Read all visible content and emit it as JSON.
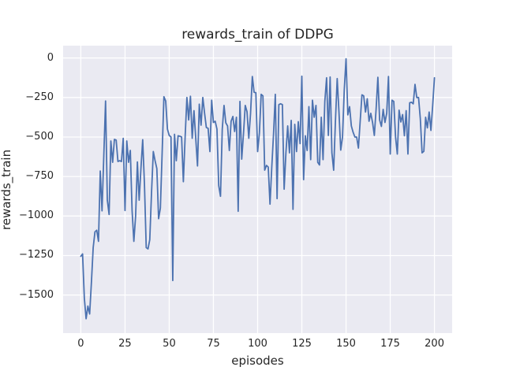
{
  "title": "rewards_train of DDPG",
  "colors": {
    "figure_background": "#ffffff",
    "axes_background": "#EAEAF2",
    "gridline": "#ffffff",
    "line": "#4C72B0",
    "text": "#262626"
  },
  "chart_data": {
    "type": "line",
    "title": "rewards_train of DDPG",
    "xlabel": "episodes",
    "ylabel": "rewards_train",
    "legend": null,
    "grid": true,
    "xlim": [
      -10,
      210
    ],
    "ylim": [
      -1741,
      78
    ],
    "xticks": [
      0,
      25,
      50,
      75,
      100,
      125,
      150,
      175,
      200
    ],
    "yticks": [
      0,
      -250,
      -500,
      -750,
      -1000,
      -1250,
      -1500
    ],
    "x_start": 0,
    "x_step": 1,
    "values": [
      -1255,
      -1240,
      -1520,
      -1650,
      -1570,
      -1620,
      -1420,
      -1200,
      -1100,
      -1090,
      -1160,
      -715,
      -967,
      -620,
      -272,
      -900,
      -990,
      -525,
      -660,
      -515,
      -520,
      -655,
      -650,
      -655,
      -508,
      -965,
      -525,
      -660,
      -585,
      -965,
      -1160,
      -1000,
      -658,
      -900,
      -700,
      -517,
      -800,
      -1200,
      -1208,
      -1150,
      -850,
      -592,
      -650,
      -700,
      -1017,
      -950,
      -600,
      -245,
      -272,
      -450,
      -490,
      -500,
      -1408,
      -483,
      -650,
      -492,
      -495,
      -500,
      -783,
      -500,
      -250,
      -392,
      -242,
      -508,
      -333,
      -508,
      -683,
      -292,
      -425,
      -250,
      -350,
      -440,
      -445,
      -592,
      -267,
      -408,
      -400,
      -450,
      -808,
      -875,
      -450,
      -300,
      -410,
      -430,
      -585,
      -400,
      -370,
      -465,
      -375,
      -970,
      -275,
      -640,
      -480,
      -300,
      -340,
      -508,
      -350,
      -117,
      -217,
      -220,
      -592,
      -475,
      -230,
      -240,
      -710,
      -680,
      -690,
      -925,
      -690,
      -480,
      -230,
      -890,
      -295,
      -290,
      -295,
      -830,
      -600,
      -430,
      -600,
      -395,
      -958,
      -420,
      -592,
      -403,
      -542,
      -115,
      -770,
      -492,
      -585,
      -308,
      -643,
      -267,
      -375,
      -300,
      -660,
      -677,
      -375,
      -643,
      -275,
      -125,
      -490,
      -120,
      -600,
      -710,
      -400,
      -130,
      -342,
      -583,
      -500,
      -200,
      -5,
      -360,
      -308,
      -430,
      -470,
      -500,
      -500,
      -570,
      -400,
      -233,
      -240,
      -342,
      -258,
      -400,
      -350,
      -408,
      -490,
      -325,
      -122,
      -392,
      -433,
      -325,
      -408,
      -350,
      -117,
      -608,
      -267,
      -275,
      -500,
      -608,
      -330,
      -405,
      -358,
      -492,
      -333,
      -608,
      -283,
      -280,
      -290,
      -167,
      -250,
      -250,
      -383,
      -600,
      -590,
      -375,
      -442,
      -342,
      -458,
      -300,
      -125
    ]
  }
}
